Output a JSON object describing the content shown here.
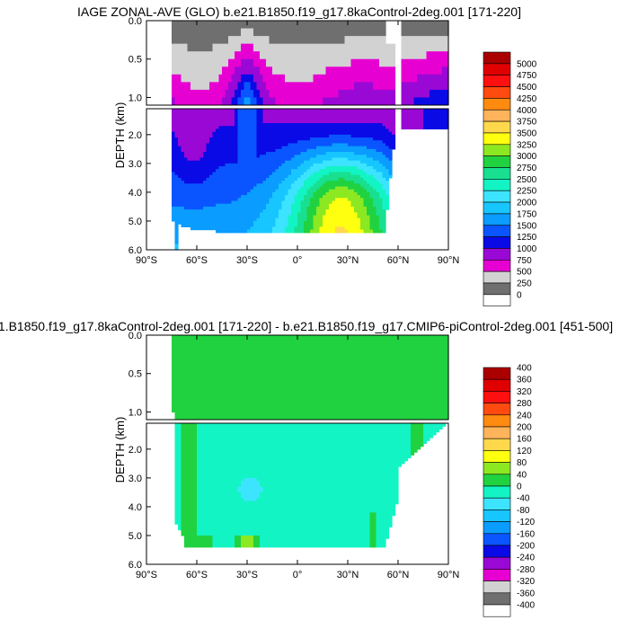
{
  "chart_data": [
    {
      "type": "heatmap",
      "title": "IAGE ZONAL-AVE (GLO) b.e21.B1850.f19_g17.8kaControl-2deg.001 [171-220]",
      "ylabel": "DEPTH (km)",
      "xlabel": "",
      "x_tick_labels": [
        "90°S",
        "60°S",
        "30°S",
        "0°",
        "30°N",
        "60°N",
        "90°N"
      ],
      "x_tick_values": [
        -90,
        -60,
        -30,
        0,
        30,
        60,
        90
      ],
      "y_tick_labels_top": [
        "0.0",
        "0.5",
        "1.0"
      ],
      "y_tick_labels_bottom": [
        "2.0",
        "3.0",
        "4.0",
        "5.0",
        "6.0"
      ],
      "xlim": [
        -90,
        90
      ],
      "ylim": [
        0,
        6
      ],
      "depth_break_km": 1.1,
      "colorbar_labels": [
        "0",
        "250",
        "500",
        "750",
        "1000",
        "1250",
        "1500",
        "1750",
        "2000",
        "2250",
        "2500",
        "2750",
        "3000",
        "3250",
        "3500",
        "3750",
        "4000",
        "4250",
        "4500",
        "4750",
        "5000"
      ],
      "colors": [
        "#ffffff",
        "#6f6f6f",
        "#d2d2d2",
        "#e600d2",
        "#9a08d6",
        "#0a0ae6",
        "#0a55ff",
        "#0a9cff",
        "#18c6ff",
        "#3ce4ff",
        "#13f4c4",
        "#18e090",
        "#20d240",
        "#8ce820",
        "#ffff10",
        "#ffd84c",
        "#ffb45c",
        "#ff8a10",
        "#ff4a10",
        "#ff1010",
        "#e00000",
        "#aa0000"
      ],
      "fields": {
        "ocean_lat_range": [
          -75,
          90
        ],
        "land_lat_range": [
          64,
          68
        ]
      }
    },
    {
      "type": "heatmap",
      "title": "1.B1850.f19_g17.8kaControl-2deg.001 [171-220] - b.e21.B1850.f19_g17.CMIP6-piControl-2deg.001 [451-500]",
      "ylabel": "DEPTH (km)",
      "xlabel": "",
      "x_tick_labels": [
        "90°S",
        "60°S",
        "30°S",
        "0°",
        "30°N",
        "60°N",
        "90°N"
      ],
      "x_tick_values": [
        -90,
        -60,
        -30,
        0,
        30,
        60,
        90
      ],
      "y_tick_labels_top": [
        "0.0",
        "0.5",
        "1.0"
      ],
      "y_tick_labels_bottom": [
        "2.0",
        "3.0",
        "4.0",
        "5.0",
        "6.0"
      ],
      "xlim": [
        -90,
        90
      ],
      "ylim": [
        0,
        6
      ],
      "depth_break_km": 1.1,
      "colorbar_labels": [
        "-400",
        "-360",
        "-320",
        "-280",
        "-240",
        "-200",
        "-160",
        "-120",
        "-80",
        "-40",
        "0",
        "40",
        "80",
        "120",
        "160",
        "200",
        "240",
        "280",
        "320",
        "360",
        "400"
      ],
      "colors": [
        "#ffffff",
        "#6f6f6f",
        "#d2d2d2",
        "#e600d2",
        "#9a08d6",
        "#0a0ae6",
        "#0a55ff",
        "#0a9cff",
        "#18c6ff",
        "#3ce4ff",
        "#13f4c4",
        "#20d240",
        "#8ce820",
        "#ffff10",
        "#ffd84c",
        "#ffb45c",
        "#ff8a10",
        "#ff4a10",
        "#ff1010",
        "#e00000",
        "#aa0000"
      ]
    }
  ]
}
